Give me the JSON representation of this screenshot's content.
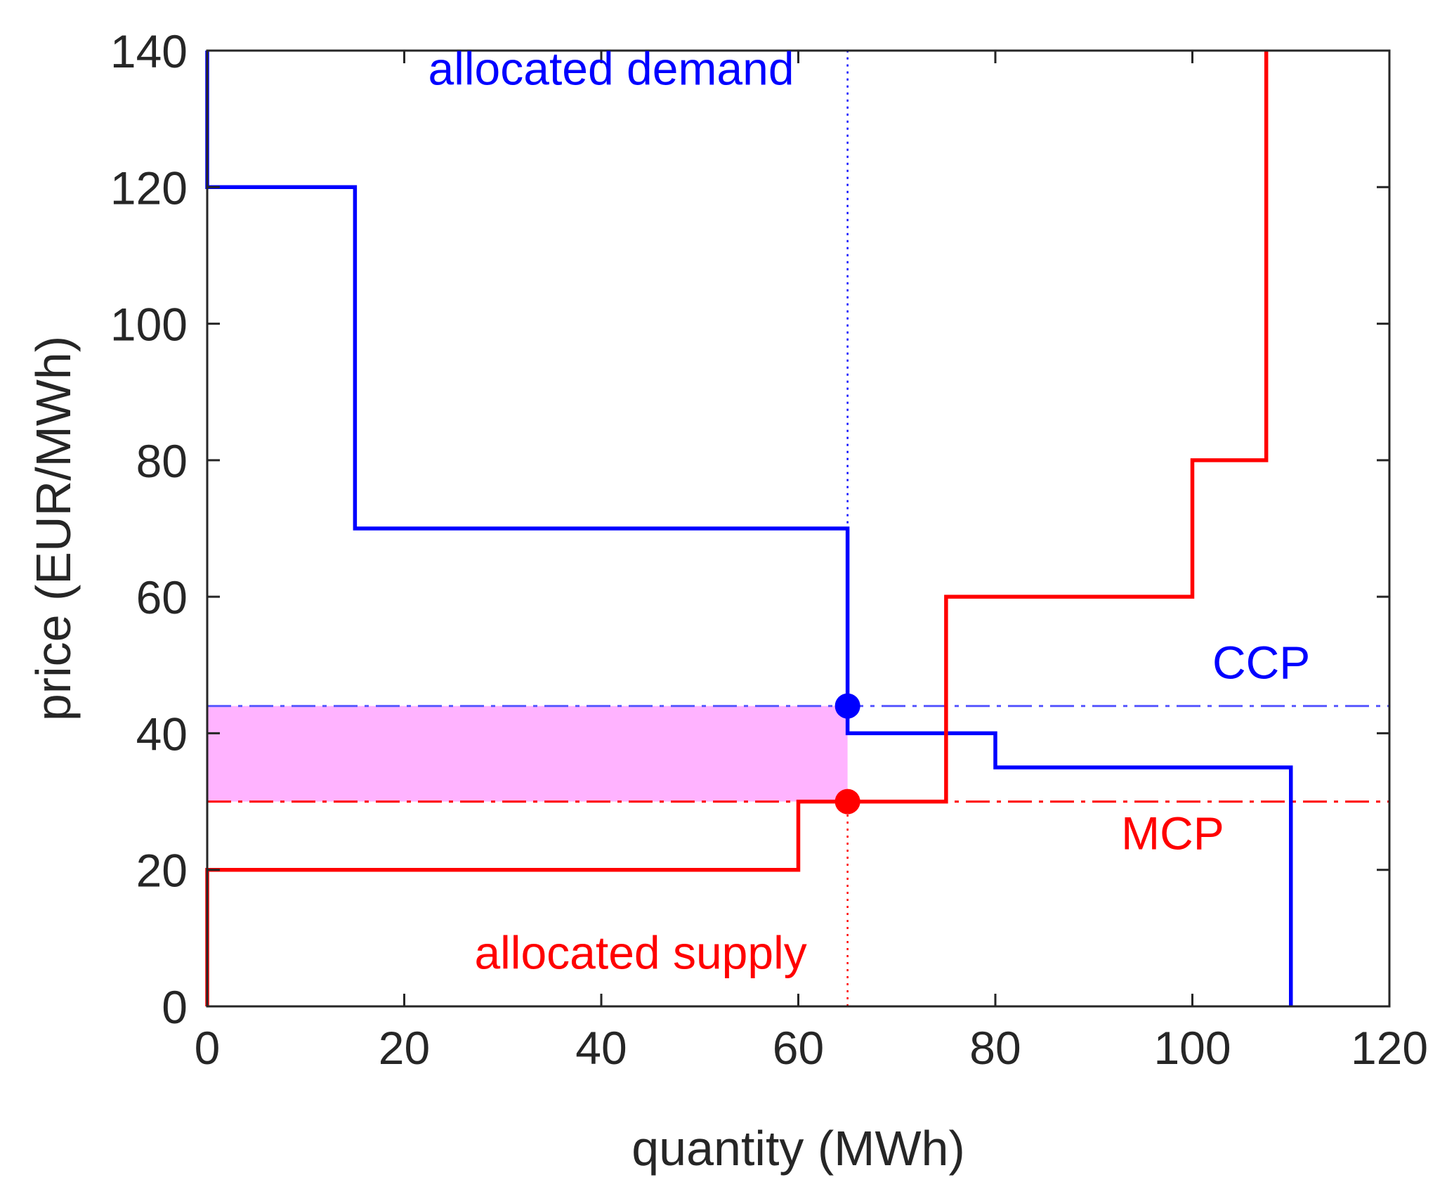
{
  "chart_data": {
    "type": "line",
    "title": "",
    "xlabel": "quantity (MWh)",
    "ylabel": "price (EUR/MWh)",
    "xlim": [
      0,
      120
    ],
    "ylim": [
      0,
      140
    ],
    "xticks": [
      "0",
      "20",
      "40",
      "60",
      "80",
      "100",
      "120"
    ],
    "yticks": [
      "0",
      "20",
      "40",
      "60",
      "80",
      "100",
      "120",
      "140"
    ],
    "grid": false,
    "series": [
      {
        "name": "demand",
        "color": "#0000ff",
        "step": true,
        "x": [
          0,
          0,
          15,
          15,
          65,
          65,
          80,
          80,
          110,
          110
        ],
        "y": [
          140,
          120,
          120,
          70,
          70,
          40,
          40,
          35,
          35,
          0
        ]
      },
      {
        "name": "supply",
        "color": "#ff0000",
        "step": true,
        "x": [
          0,
          0,
          60,
          60,
          75,
          75,
          100,
          100,
          107.5,
          107.5
        ],
        "y": [
          0,
          20,
          20,
          30,
          30,
          60,
          60,
          80,
          80,
          140
        ]
      }
    ],
    "reference_lines": [
      {
        "name": "CCP",
        "orientation": "horizontal",
        "value": 44,
        "style": "dash-dot",
        "color": "#5a5aff"
      },
      {
        "name": "MCP",
        "orientation": "horizontal",
        "value": 30,
        "style": "dash-dot",
        "color": "#ff0000"
      },
      {
        "name": "allocated demand",
        "orientation": "vertical",
        "value": 65,
        "y_from": 44,
        "y_to": 140,
        "style": "dotted",
        "color": "#0000ff"
      },
      {
        "name": "allocated supply",
        "orientation": "vertical",
        "value": 65,
        "y_from": 0,
        "y_to": 30,
        "style": "dotted",
        "color": "#ff0000"
      }
    ],
    "points": [
      {
        "name": "CCP point",
        "x": 65,
        "y": 44,
        "color": "#0000ff"
      },
      {
        "name": "MCP point",
        "x": 65,
        "y": 30,
        "color": "#ff0000"
      }
    ],
    "shaded_region": {
      "x": [
        0,
        65
      ],
      "y": [
        30,
        44
      ],
      "color": "#ffb3ff"
    },
    "annotations": [
      {
        "text": "allocated demand",
        "color": "#0000ff",
        "x": 41,
        "y": 135
      },
      {
        "text": "allocated supply",
        "color": "#ff0000",
        "x": 44,
        "y": 5.5
      },
      {
        "text": "CCP",
        "color": "#0000ff",
        "x": 107,
        "y": 48
      },
      {
        "text": "MCP",
        "color": "#ff0000",
        "x": 98,
        "y": 23
      }
    ]
  }
}
